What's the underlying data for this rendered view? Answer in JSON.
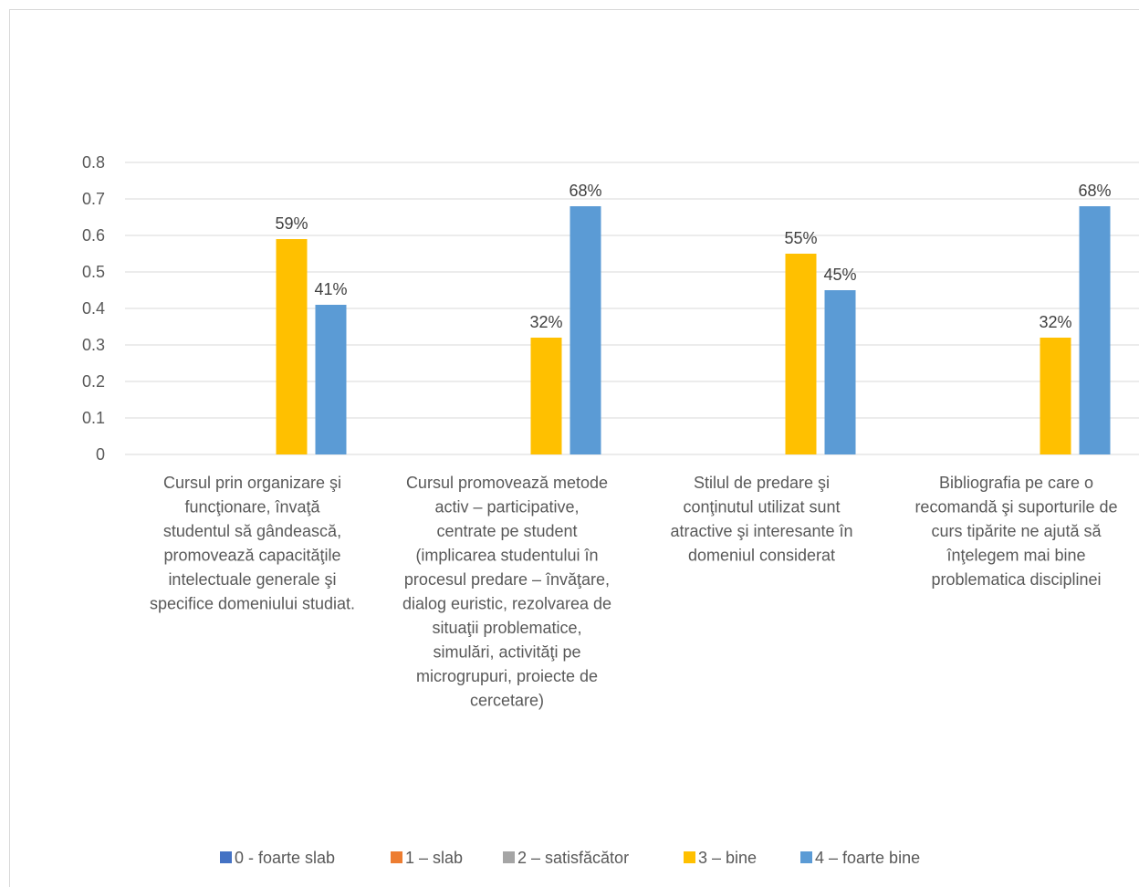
{
  "chart_data": {
    "type": "bar",
    "title": "",
    "xlabel": "",
    "ylabel": "",
    "ylim": [
      0,
      0.8
    ],
    "yticks": [
      "0",
      "0.1",
      "0.2",
      "0.3",
      "0.4",
      "0.5",
      "0.6",
      "0.7",
      "0.8"
    ],
    "grid": true,
    "legend_position": "bottom",
    "categories": [
      [
        "Cursul prin organizare şi",
        "funcţionare, învaţă",
        "studentul să gândească,",
        "promovează capacităţile",
        "intelectuale generale şi",
        "specifice domeniului studiat."
      ],
      [
        "Cursul promovează  metode",
        "activ – participative,",
        "centrate pe student",
        "(implicarea studentului în",
        "procesul predare – învăţare,",
        "dialog euristic, rezolvarea de",
        "situaţii problematice,",
        "simulări, activităţi pe",
        "microgrupuri, proiecte de",
        "cercetare)"
      ],
      [
        "Stilul de predare şi",
        "conţinutul utilizat  sunt",
        "atractive şi interesante în",
        "domeniul considerat"
      ],
      [
        "Bibliografia pe care o",
        "recomandă şi suporturile de",
        "curs tipărite ne ajută să",
        "înţelegem mai bine",
        "problematica disciplinei"
      ]
    ],
    "series": [
      {
        "name": "0 - foarte slab",
        "color": "#4472c4",
        "values": [
          0,
          0,
          0,
          0
        ],
        "labels": [
          "",
          "",
          "",
          ""
        ]
      },
      {
        "name": "1 – slab",
        "color": "#ed7d31",
        "values": [
          0,
          0,
          0,
          0
        ],
        "labels": [
          "",
          "",
          "",
          ""
        ]
      },
      {
        "name": "2 – satisfăcător",
        "color": "#a5a5a5",
        "values": [
          0,
          0,
          0,
          0
        ],
        "labels": [
          "",
          "",
          "",
          ""
        ]
      },
      {
        "name": "3 – bine",
        "color": "#ffc000",
        "values": [
          0.59,
          0.32,
          0.55,
          0.32
        ],
        "labels": [
          "59%",
          "32%",
          "55%",
          "32%"
        ]
      },
      {
        "name": "4 – foarte bine",
        "color": "#5b9bd5",
        "values": [
          0.41,
          0.68,
          0.45,
          0.68
        ],
        "labels": [
          "41%",
          "68%",
          "45%",
          "68%"
        ]
      }
    ]
  }
}
